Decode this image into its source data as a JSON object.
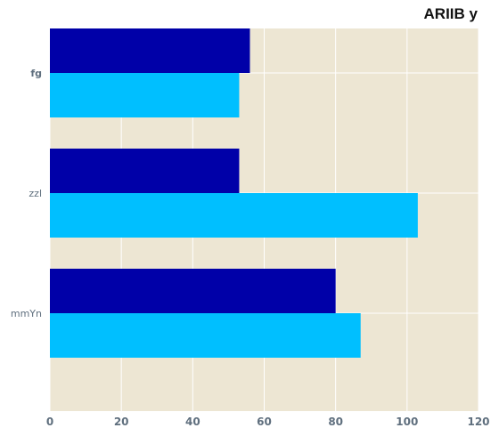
{
  "chart_data": {
    "type": "bar",
    "orientation": "horizontal",
    "title": "ARIIB y",
    "categories": [
      "fg",
      "zzl",
      "mmYn"
    ],
    "series": [
      {
        "values": [
          56,
          53,
          80
        ],
        "color": "#0000a8"
      },
      {
        "values": [
          53,
          103,
          87
        ],
        "color": "#00bfff"
      }
    ],
    "xlim": [
      0,
      120
    ],
    "xticks": [
      0,
      20,
      40,
      60,
      80,
      100,
      120
    ],
    "grid": true,
    "background": "#ede6d3",
    "grid_color": "#ffffff"
  }
}
